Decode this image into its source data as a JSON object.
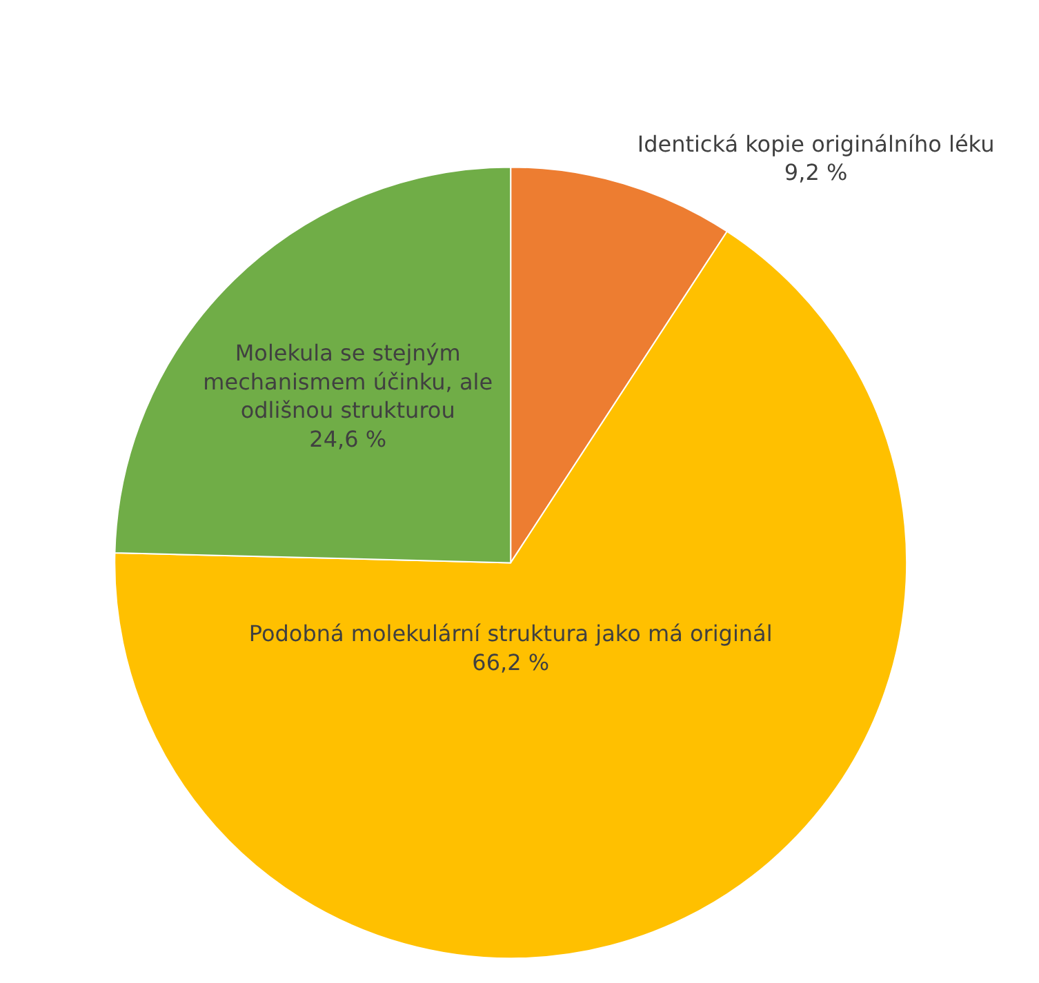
{
  "chart_data": {
    "type": "pie",
    "categories": [
      "Identická kopie originálního léku",
      "Podobná molekulární struktura jako má originál",
      "Molekula se stejným mechanismem účinku, ale odlišnou strukturou"
    ],
    "values": [
      9.2,
      66.2,
      24.6
    ],
    "value_labels": [
      "9,2 %",
      "66,2 %",
      "24,6 %"
    ],
    "colors": [
      "#ed7d31",
      "#ffc000",
      "#70ad47"
    ],
    "legend": false
  }
}
